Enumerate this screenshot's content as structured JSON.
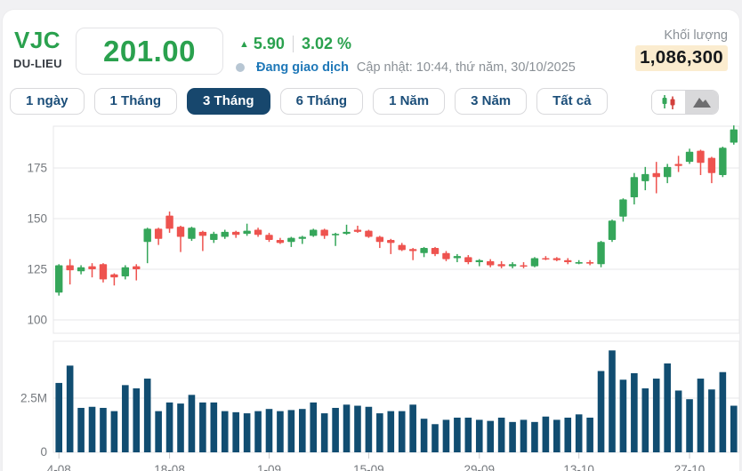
{
  "header": {
    "ticker": "VJC",
    "source": "DU-LIEU",
    "price": "201.00",
    "change_arrow": "▲",
    "change_value": "5.90",
    "change_percent": "3.02 %",
    "status": "Đang giao dịch",
    "updated": "Cập nhật: 10:44, thứ năm, 30/10/2025",
    "volume_label": "Khối lượng",
    "volume_value": "1,086,300"
  },
  "tabs": {
    "items": [
      "1 ngày",
      "1 Tháng",
      "3 Tháng",
      "6 Tháng",
      "1 Năm",
      "3 Năm",
      "Tất cả"
    ],
    "active_index": 2
  },
  "chart_type_toggle": {
    "options": [
      "candlestick",
      "area"
    ],
    "pressed": "area"
  },
  "colors": {
    "up": "#35a65a",
    "down": "#ee534f",
    "volume_bar": "#114d71",
    "accent_navy": "#1b4e79",
    "active_tab_bg": "#17476d",
    "price_green": "#2aa14e",
    "status_blue": "#1f78b8",
    "muted_text": "#8a9096",
    "volume_highlight_bg": "#fbeccf",
    "grid": "#e7e7ea",
    "axis_text": "#75797e"
  },
  "chart_data": {
    "type": "candlestick",
    "title": "VJC 3-month daily price and volume",
    "price_axis": {
      "ticks": [
        175,
        150,
        125,
        100
      ],
      "ylim": [
        97,
        197
      ]
    },
    "volume_axis": {
      "tick_labels": [
        "2.5M",
        "0"
      ],
      "tick_values": [
        2.5,
        0
      ],
      "unit": "millions",
      "ylim": [
        0,
        5
      ]
    },
    "x_ticks": {
      "labels": [
        "4-08",
        "18-08",
        "1-09",
        "15-09",
        "29-09",
        "13-10",
        "27-10"
      ],
      "candle_indices": [
        0,
        10,
        19,
        28,
        38,
        47,
        57
      ]
    },
    "candle_format": [
      "open",
      "high",
      "low",
      "close"
    ],
    "candles": [
      [
        113.5,
        127.5,
        112,
        127
      ],
      [
        127,
        130,
        117.5,
        124.5
      ],
      [
        124,
        127,
        122.5,
        126
      ],
      [
        126.5,
        128,
        121,
        125
      ],
      [
        127.5,
        128,
        118.5,
        120
      ],
      [
        122.5,
        123,
        117,
        121
      ],
      [
        121.5,
        127,
        120,
        126
      ],
      [
        126.5,
        127.5,
        119.5,
        125
      ],
      [
        138.5,
        145.5,
        128,
        145
      ],
      [
        145,
        145.5,
        137,
        140
      ],
      [
        151.5,
        153.5,
        143,
        145
      ],
      [
        146,
        146.5,
        133.5,
        141
      ],
      [
        140,
        146,
        139,
        145.5
      ],
      [
        143.5,
        144,
        134,
        141.5
      ],
      [
        139.5,
        143.5,
        138,
        142.5
      ],
      [
        141,
        144.5,
        140,
        143.5
      ],
      [
        143.5,
        144,
        140.5,
        142
      ],
      [
        142.5,
        147.5,
        141.5,
        144
      ],
      [
        144.5,
        145.5,
        141,
        142
      ],
      [
        142,
        143,
        138.5,
        139.5
      ],
      [
        139.5,
        140.5,
        137.5,
        138
      ],
      [
        138.5,
        141,
        136,
        140.5
      ],
      [
        140,
        141.5,
        137.5,
        141
      ],
      [
        141.5,
        145,
        141,
        144.5
      ],
      [
        144.5,
        145,
        140,
        141.5
      ],
      [
        142,
        143,
        136.5,
        142.5
      ],
      [
        142.5,
        147,
        142,
        143.5
      ],
      [
        144.5,
        146.5,
        143,
        143.5
      ],
      [
        144,
        144.5,
        140.5,
        141
      ],
      [
        141,
        141.5,
        135.5,
        138.5
      ],
      [
        139.5,
        140,
        132.5,
        138
      ],
      [
        137,
        138,
        134,
        134.5
      ],
      [
        135,
        135.5,
        129.5,
        134
      ],
      [
        133,
        136,
        131,
        135.5
      ],
      [
        135.5,
        136,
        131.5,
        132.5
      ],
      [
        133,
        134,
        129,
        130
      ],
      [
        130.5,
        132.5,
        128.5,
        131.5
      ],
      [
        131,
        132,
        127.5,
        128.5
      ],
      [
        128.5,
        130,
        126.5,
        129.5
      ],
      [
        129,
        130,
        126,
        127
      ],
      [
        127.5,
        129,
        125.5,
        126.5
      ],
      [
        126.5,
        128.5,
        125.5,
        127.5
      ],
      [
        127,
        128.5,
        125.5,
        126.5
      ],
      [
        126.5,
        131,
        126,
        130.5
      ],
      [
        130.5,
        131.5,
        129.5,
        130
      ],
      [
        130.5,
        131,
        129,
        129.5
      ],
      [
        129.5,
        130.5,
        127.5,
        128.5
      ],
      [
        128.5,
        129.5,
        127.5,
        128.5
      ],
      [
        128.5,
        129.5,
        127,
        128
      ],
      [
        127.5,
        139,
        126,
        138.5
      ],
      [
        139.5,
        149.5,
        138.5,
        149
      ],
      [
        151,
        160,
        148.5,
        159.5
      ],
      [
        160.5,
        172.5,
        157,
        170.5
      ],
      [
        168.5,
        175.5,
        164,
        172
      ],
      [
        172.5,
        178,
        162.5,
        170.5
      ],
      [
        170.5,
        177,
        167.5,
        175.5
      ],
      [
        177,
        181,
        173,
        176
      ],
      [
        178,
        184.5,
        177,
        183
      ],
      [
        183.5,
        184,
        171.5,
        177.5
      ],
      [
        180,
        180.5,
        167.5,
        172.5
      ],
      [
        171.5,
        185.5,
        170.5,
        185
      ],
      [
        187.5,
        196,
        186.5,
        194
      ]
    ],
    "volumes_millions": [
      3.2,
      4.0,
      2.05,
      2.1,
      2.05,
      1.9,
      3.1,
      2.95,
      3.4,
      1.9,
      2.3,
      2.25,
      2.65,
      2.3,
      2.3,
      1.9,
      1.85,
      1.8,
      1.9,
      2.0,
      1.9,
      1.95,
      2.0,
      2.3,
      1.8,
      2.05,
      2.2,
      2.15,
      2.1,
      1.8,
      1.9,
      1.9,
      2.2,
      1.55,
      1.3,
      1.5,
      1.6,
      1.6,
      1.5,
      1.45,
      1.6,
      1.4,
      1.5,
      1.4,
      1.65,
      1.5,
      1.6,
      1.75,
      1.6,
      3.75,
      4.7,
      3.35,
      3.65,
      2.95,
      3.4,
      4.1,
      2.85,
      2.45,
      3.4,
      2.9,
      3.7,
      2.15
    ]
  }
}
